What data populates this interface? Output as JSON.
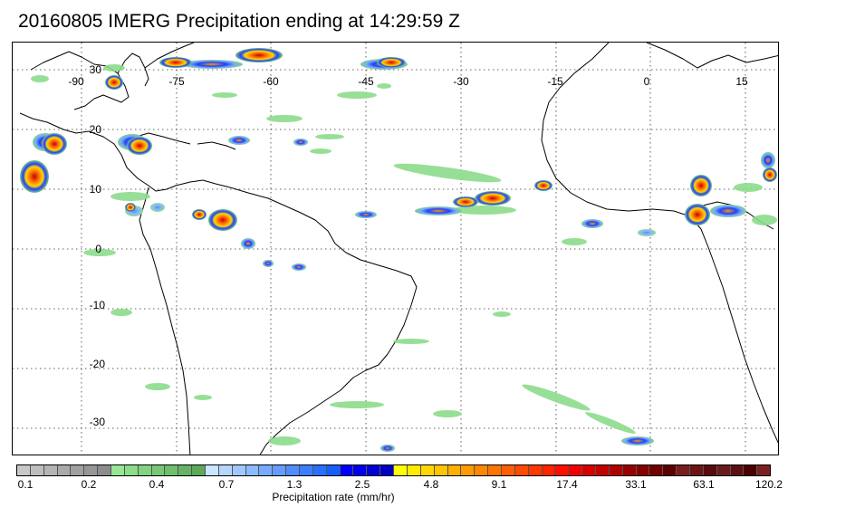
{
  "title": "20160805 IMERG Precipitation ending at 14:29:59 Z",
  "map": {
    "longitude_labels": [
      "-90",
      "-75",
      "-60",
      "-45",
      "-30",
      "-15",
      "0",
      "15"
    ],
    "latitude_labels": [
      "30",
      "20",
      "10",
      "0",
      "-10",
      "-20",
      "-30"
    ],
    "gridlines": "dotted",
    "land_outline_color": "#000000"
  },
  "colorbar": {
    "label": "Precipitation rate (mm/hr)",
    "tick_labels": [
      "0.1",
      "0.2",
      "0.4",
      "0.7",
      "1.3",
      "2.5",
      "4.8",
      "9.1",
      "17.4",
      "33.1",
      "63.1",
      "120.2"
    ],
    "colors": [
      "#c8c8c8",
      "#bebebe",
      "#b4b4b4",
      "#aaaaaa",
      "#a0a0a0",
      "#969696",
      "#8c8c8c",
      "#96e696",
      "#8cdc8c",
      "#82d282",
      "#78c878",
      "#6ebe6e",
      "#64b464",
      "#5aaa5a",
      "#c8e6ff",
      "#b4d7ff",
      "#a0c8ff",
      "#8cbaff",
      "#78abff",
      "#649cff",
      "#508dff",
      "#3c7eff",
      "#286fff",
      "#1460ff",
      "#0000ff",
      "#0000eb",
      "#0000d7",
      "#0000c3",
      "#ffff00",
      "#ffeb00",
      "#ffd700",
      "#ffc300",
      "#ffaf00",
      "#ff9b00",
      "#ff8700",
      "#ff7300",
      "#ff5f00",
      "#ff4b00",
      "#ff3700",
      "#ff2300",
      "#ff0f00",
      "#f00000",
      "#d70000",
      "#c30000",
      "#af0000",
      "#9b0000",
      "#870000",
      "#730000",
      "#5f0000",
      "#7a1c1c",
      "#6e1414",
      "#5a0a0a",
      "#6b1a1a",
      "#5c1010",
      "#4a0000",
      "#7a2020"
    ]
  }
}
